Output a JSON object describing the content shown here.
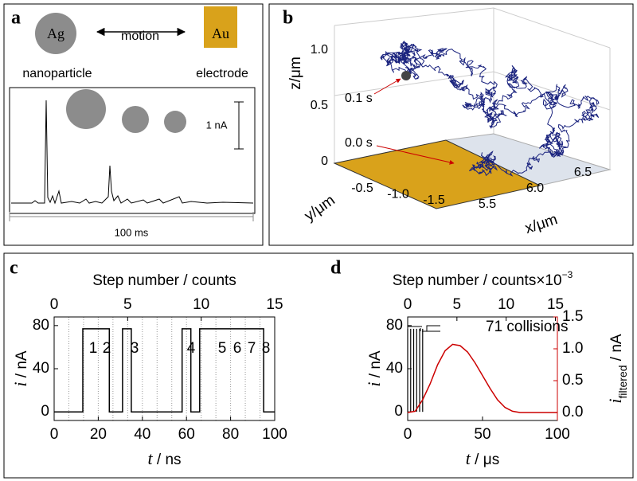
{
  "panel_a": {
    "label": "a",
    "particle": "Ag",
    "electrode": "Au",
    "motion": "motion",
    "particle_caption": "nanoparticle",
    "electrode_caption": "electrode",
    "current_scale": "1 nA",
    "time_scale": "100 ms"
  },
  "panel_b": {
    "label": "b",
    "xlabel": "x/μm",
    "ylabel": "y/μm",
    "zlabel": "z/μm",
    "xticks": [
      5.5,
      {
        "value": 6,
        "label": "6.0"
      },
      6.5
    ],
    "yticks": [
      -0.5,
      {
        "value": -1,
        "label": "-1.0"
      },
      -1.5
    ],
    "zticks": [
      0,
      0.5,
      {
        "value": 1,
        "label": "1.0"
      }
    ],
    "annotations": [
      "0.1 s",
      "0.0 s"
    ],
    "annotation_color": "#cc0000",
    "trajectory_color": "#1a237e"
  },
  "chart_data": [
    {
      "type": "line",
      "label": "c",
      "title": {
        "text": "Step number / counts"
      },
      "xlabel": {
        "symbol": "t",
        "unit": " / ns"
      },
      "ylabel": {
        "symbol": "i",
        "unit": " / nA"
      },
      "xlim": [
        0,
        100
      ],
      "xticks": [
        0,
        20,
        40,
        60,
        80,
        100
      ],
      "ylim": [
        -8,
        88
      ],
      "yticks": [
        0,
        40,
        80
      ],
      "x2lim": [
        0,
        15
      ],
      "x2ticks": [
        0,
        5,
        10,
        15
      ],
      "x2_grid_step": 1,
      "series": [
        {
          "color": "#000000",
          "x": [
            0,
            13,
            13,
            25,
            25,
            31,
            31,
            35,
            35,
            58,
            58,
            62,
            62,
            66,
            66,
            95,
            95,
            100
          ],
          "values": [
            0,
            0,
            77,
            77,
            0,
            0,
            77,
            77,
            0,
            0,
            77,
            77,
            0,
            0,
            77,
            77,
            0,
            0
          ]
        }
      ],
      "annotations": [
        "1",
        "2",
        "3",
        "4",
        "5",
        "6",
        "7",
        "8"
      ],
      "annotation_color": "#cc0000"
    },
    {
      "type": "line",
      "label": "d",
      "title": {
        "text": "Step number / counts×10",
        "superscript": "−3"
      },
      "xlabel": {
        "symbol": "t",
        "unit": " / μs"
      },
      "ylabel": {
        "symbol": "i",
        "unit": " / nA"
      },
      "y2label": {
        "symbol": "i",
        "subscript": "filtered",
        "unit": " / nA"
      },
      "xlim": [
        0,
        100
      ],
      "xticks": [
        0,
        50,
        100
      ],
      "ylim": [
        -8,
        88
      ],
      "yticks": [
        0,
        40,
        80
      ],
      "y2lim": [
        -0.125,
        1.5
      ],
      "y2ticks": [
        1.5,
        {
          "value": 1,
          "label": "1.0"
        },
        0.5,
        {
          "value": 0,
          "label": "0.0"
        }
      ],
      "x2lim": [
        0,
        15.2
      ],
      "x2ticks": [
        0,
        5,
        10,
        15
      ],
      "series": [
        {
          "style": "stem",
          "color": "#000000",
          "x": [
            0,
            2,
            4,
            6,
            8,
            10
          ],
          "values": [
            77,
            77,
            77,
            77,
            77,
            77
          ]
        },
        {
          "axis": "y2",
          "color": "#cc0000",
          "x": [
            0,
            5,
            10,
            15,
            20,
            25,
            30,
            35,
            40,
            45,
            50,
            55,
            60,
            65,
            70,
            75,
            80,
            90,
            100
          ],
          "values": [
            0,
            0.02,
            0.2,
            0.45,
            0.75,
            0.97,
            1.07,
            1.05,
            0.95,
            0.78,
            0.58,
            0.38,
            0.2,
            0.08,
            0.02,
            0,
            0,
            0,
            0
          ]
        }
      ],
      "annotations": [
        "71 collisions"
      ],
      "annotation_color": "#000000"
    }
  ]
}
